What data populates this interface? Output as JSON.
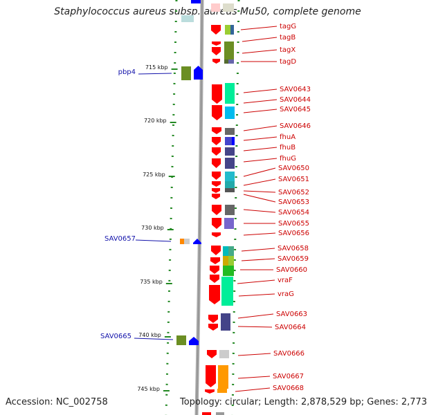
{
  "title": "Staphylococcus aureus subsp. aureus Mu50, complete genome",
  "footer": {
    "accession": "Accession: NC_002758",
    "topology": "Topology: circular; Length: 2,878,529 bp; Genes: 2,773"
  },
  "colors": {
    "forward_gene": "#ff0000",
    "reverse_gene": "#0000ff",
    "right_label": "#cc0000",
    "left_label": "#1111aa",
    "backbone": "#999999"
  },
  "scale": {
    "unit": "kbp",
    "ticks": [
      "715 kbp",
      "720 kbp",
      "725 kbp",
      "730 kbp",
      "735 kbp",
      "740 kbp",
      "745 kbp"
    ]
  },
  "left_labels": [
    "pbp4",
    "SAV0657",
    "SAV0665"
  ],
  "right_labels": [
    "tagG",
    "tagB",
    "tagX",
    "tagD",
    "SAV0643",
    "SAV0644",
    "SAV0645",
    "SAV0646",
    "fhuA",
    "fhuB",
    "fhuG",
    "SAV0650",
    "SAV0651",
    "SAV0652",
    "SAV0653",
    "SAV0654",
    "SAV0655",
    "SAV0656",
    "SAV0658",
    "SAV0659",
    "SAV0660",
    "vraF",
    "vraG",
    "SAV0663",
    "SAV0664",
    "SAV0666",
    "SAV0667",
    "SAV0668"
  ]
}
